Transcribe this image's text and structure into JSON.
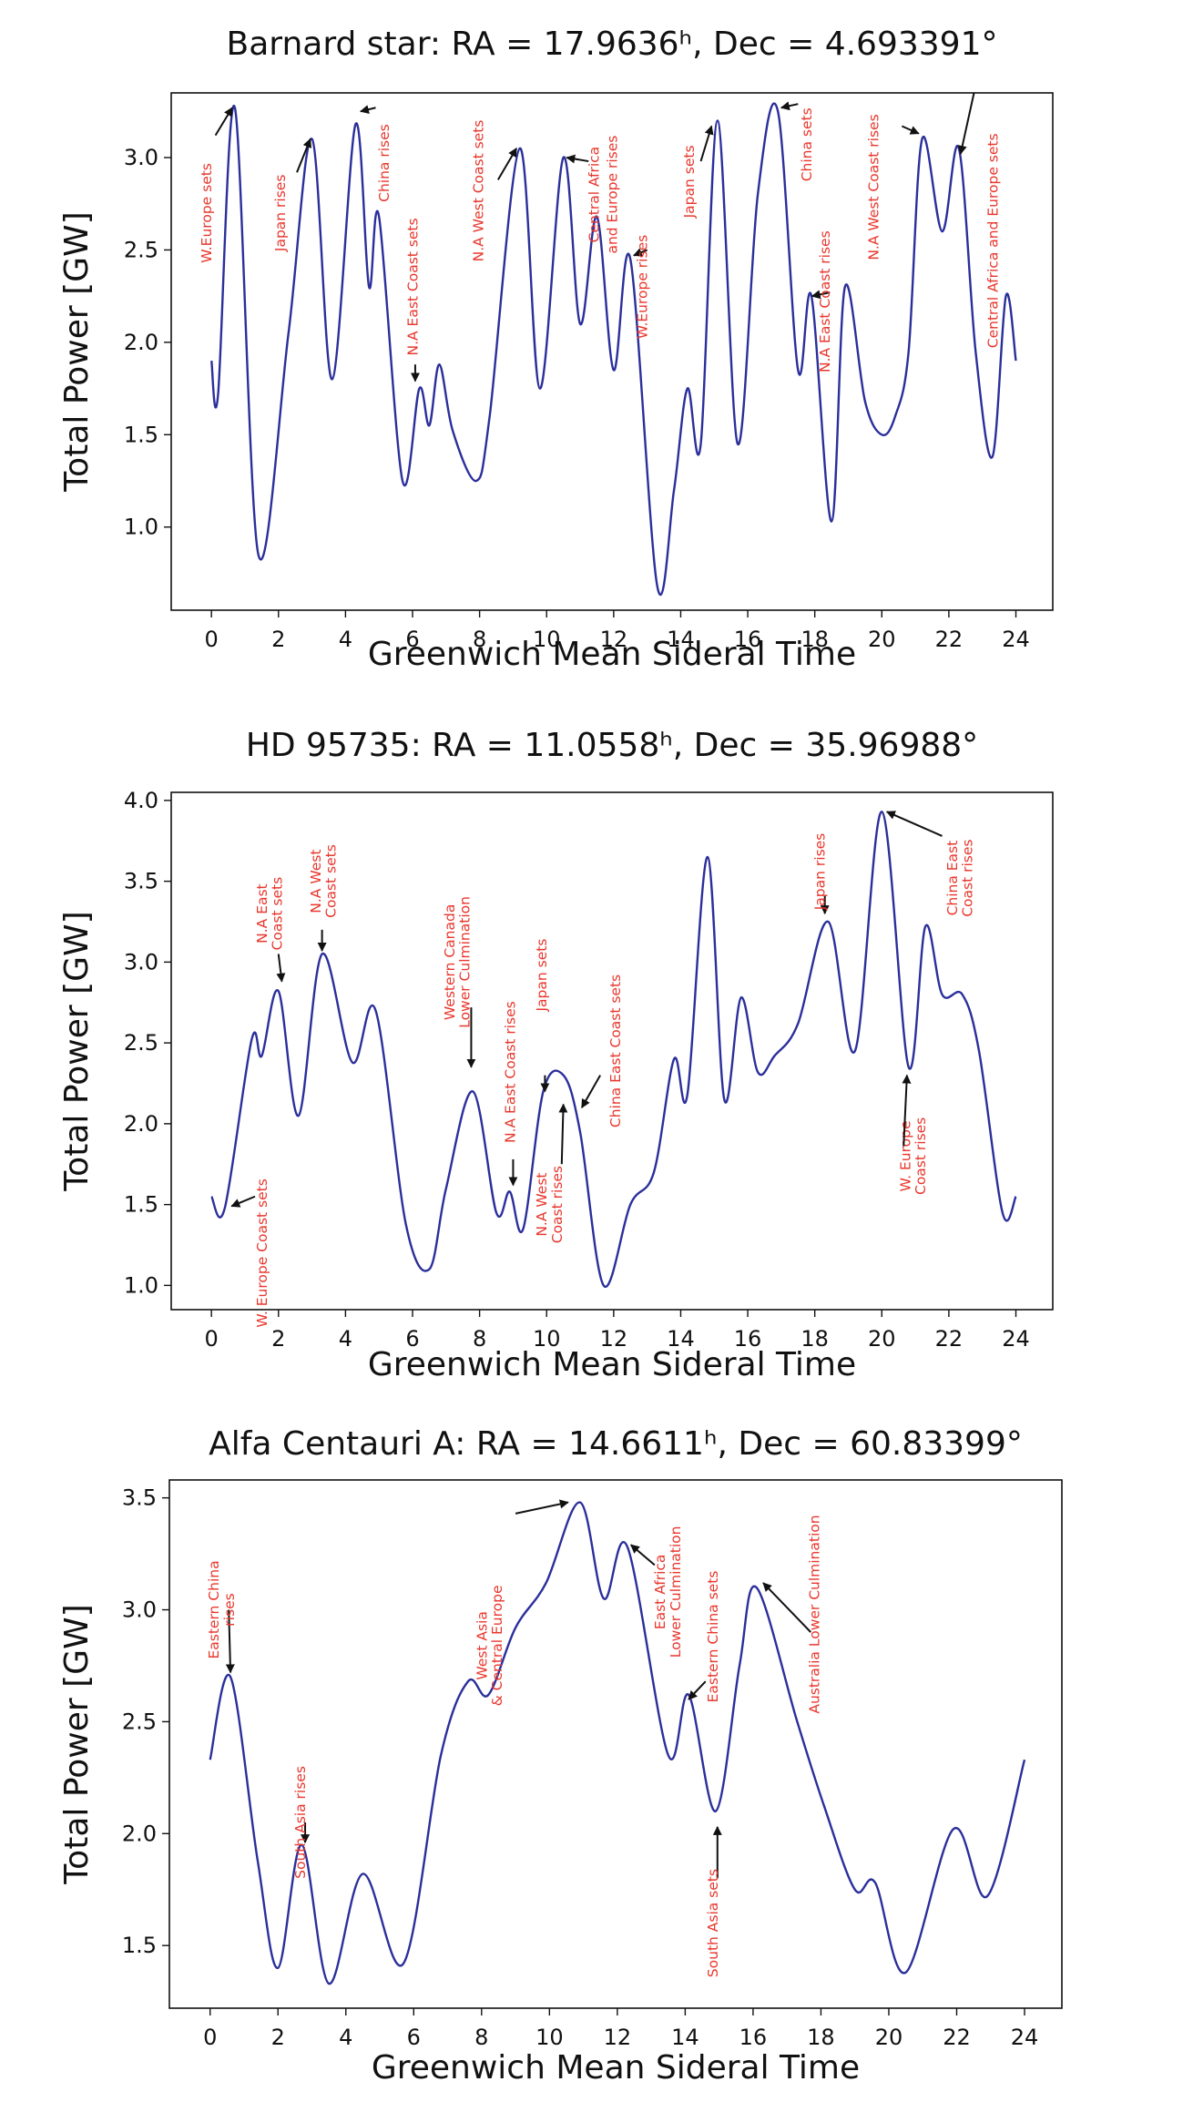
{
  "chart_data": [
    {
      "type": "line",
      "title": "Barnard star: RA = 17.9636ʰ, Dec = 4.693391°",
      "xlabel": "Greenwich Mean Sideral Time",
      "ylabel": "Total Power [GW]",
      "xlim": [
        -1.2,
        25.1
      ],
      "ylim": [
        0.55,
        3.35
      ],
      "xticks": [
        0,
        2,
        4,
        6,
        8,
        10,
        12,
        14,
        16,
        18,
        20,
        22,
        24
      ],
      "yticks": [
        1.0,
        1.5,
        2.0,
        2.5,
        3.0
      ],
      "line_color": "#2b2f9a",
      "annotation_color": "#e8372d",
      "series": [
        {
          "x": [
            0,
            0.2,
            0.7,
            1.4,
            2.3,
            3.0,
            3.6,
            4.3,
            4.7,
            5.0,
            5.7,
            6.2,
            6.5,
            6.8,
            7.2,
            7.9,
            8.3,
            9.2,
            9.8,
            10.5,
            11.0,
            11.5,
            12.0,
            12.5,
            13.3,
            13.8,
            14.2,
            14.6,
            15.1,
            15.7,
            16.3,
            16.9,
            17.5,
            17.9,
            18.5,
            18.9,
            19.5,
            20.0,
            20.4,
            20.8,
            21.2,
            21.8,
            22.3,
            22.8,
            23.3,
            23.7,
            24.0
          ],
          "values": [
            1.9,
            1.72,
            3.27,
            0.85,
            2.05,
            3.1,
            1.8,
            3.18,
            2.3,
            2.68,
            1.25,
            1.75,
            1.55,
            1.88,
            1.52,
            1.25,
            1.6,
            3.05,
            1.75,
            3.0,
            2.1,
            2.68,
            1.85,
            2.45,
            0.68,
            1.2,
            1.75,
            1.45,
            3.2,
            1.45,
            2.8,
            3.25,
            1.85,
            2.25,
            1.03,
            2.3,
            1.68,
            1.5,
            1.6,
            1.95,
            3.1,
            2.6,
            3.05,
            1.95,
            1.38,
            2.25,
            1.9
          ]
        }
      ],
      "annotations": [
        {
          "text": "W.Europe sets",
          "x": 0.0,
          "y": 2.7,
          "ax": 0.12,
          "ay": 3.12,
          "hx": 0.62,
          "hy": 3.27
        },
        {
          "text": "Japan rises",
          "x": 2.2,
          "y": 2.7,
          "ax": 2.55,
          "ay": 2.92,
          "hx": 2.95,
          "hy": 3.1
        },
        {
          "text": "China rises",
          "x": 5.3,
          "y": 2.97,
          "ax": 4.9,
          "ay": 3.27,
          "hx": 4.45,
          "hy": 3.25
        },
        {
          "text": "N.A East Coast sets",
          "x": 6.15,
          "y": 2.3,
          "ax": 6.08,
          "ay": 1.88,
          "hx": 6.08,
          "hy": 1.79
        },
        {
          "text": "N.A West Coast sets",
          "x": 8.1,
          "y": 2.82,
          "ax": 8.55,
          "ay": 2.88,
          "hx": 9.1,
          "hy": 3.05
        },
        {
          "text": "Central Africa",
          "x": 11.55,
          "y": 2.8,
          "ax": 11.25,
          "ay": 2.98,
          "hx": 10.6,
          "hy": 3.0
        },
        {
          "text": "and Europe rises",
          "x": 12.1,
          "y": 2.8
        },
        {
          "text": "W.Europe rises",
          "x": 13.0,
          "y": 2.3,
          "ax": 13.0,
          "ay": 2.5,
          "hx": 12.6,
          "hy": 2.47
        },
        {
          "text": "Japan sets",
          "x": 14.4,
          "y": 2.87,
          "ax": 14.6,
          "ay": 2.98,
          "hx": 14.92,
          "hy": 3.17
        },
        {
          "text": "China sets",
          "x": 17.9,
          "y": 3.07,
          "ax": 17.5,
          "ay": 3.29,
          "hx": 17.0,
          "hy": 3.27
        },
        {
          "text": "N.A East Coast rises",
          "x": 18.45,
          "y": 2.22,
          "ax": 18.45,
          "ay": 2.27,
          "hx": 17.92,
          "hy": 2.25
        },
        {
          "text": "N.A West Coast rises",
          "x": 19.9,
          "y": 2.84,
          "ax": 20.6,
          "ay": 3.17,
          "hx": 21.1,
          "hy": 3.13
        },
        {
          "text": "Central Africa and Europe sets",
          "x": 23.45,
          "y": 2.55,
          "ax": 22.75,
          "ay": 3.35,
          "hx": 22.35,
          "hy": 3.02
        }
      ]
    },
    {
      "type": "line",
      "title": "HD 95735: RA = 11.0558ʰ, Dec = 35.96988°",
      "xlabel": "Greenwich Mean Sideral Time",
      "ylabel": "Total Power [GW]",
      "xlim": [
        -1.2,
        25.1
      ],
      "ylim": [
        0.85,
        4.05
      ],
      "xticks": [
        0,
        2,
        4,
        6,
        8,
        10,
        12,
        14,
        16,
        18,
        20,
        22,
        24
      ],
      "yticks": [
        1.0,
        1.5,
        2.0,
        2.5,
        3.0,
        3.5,
        4.0
      ],
      "line_color": "#2b2f9a",
      "annotation_color": "#e8372d",
      "series": [
        {
          "x": [
            0,
            0.4,
            1.2,
            1.5,
            2.0,
            2.6,
            3.3,
            4.2,
            4.9,
            5.8,
            6.5,
            7.0,
            7.8,
            8.5,
            8.9,
            9.3,
            9.9,
            10.5,
            11.0,
            11.7,
            12.5,
            13.2,
            13.8,
            14.2,
            14.8,
            15.3,
            15.8,
            16.3,
            16.8,
            17.5,
            18.4,
            19.2,
            20.0,
            20.8,
            21.3,
            21.8,
            22.4,
            22.9,
            23.6,
            24.0
          ],
          "values": [
            1.55,
            1.48,
            2.52,
            2.42,
            2.82,
            2.05,
            3.05,
            2.38,
            2.7,
            1.38,
            1.1,
            1.6,
            2.2,
            1.45,
            1.58,
            1.35,
            2.2,
            2.3,
            1.95,
            1.0,
            1.5,
            1.7,
            2.4,
            2.18,
            3.65,
            2.15,
            2.78,
            2.32,
            2.42,
            2.62,
            3.25,
            2.45,
            3.93,
            2.35,
            3.22,
            2.8,
            2.8,
            2.45,
            1.45,
            1.55
          ]
        }
      ],
      "annotations": [
        {
          "text": "W. Europe Coast sets",
          "x": 1.65,
          "y": 1.2,
          "ax": 1.3,
          "ay": 1.55,
          "hx": 0.6,
          "hy": 1.49
        },
        {
          "text": "N.A East",
          "x": 1.65,
          "y": 3.3
        },
        {
          "text": "Coast sets",
          "x": 2.1,
          "y": 3.3,
          "ax": 2.0,
          "ay": 3.05,
          "hx": 2.1,
          "hy": 2.88
        },
        {
          "text": "N.A West",
          "x": 3.25,
          "y": 3.5
        },
        {
          "text": "Coast sets",
          "x": 3.7,
          "y": 3.5,
          "ax": 3.3,
          "ay": 3.2,
          "hx": 3.3,
          "hy": 3.07
        },
        {
          "text": "Western Canada",
          "x": 7.25,
          "y": 3.0
        },
        {
          "text": "Lower Culmination",
          "x": 7.7,
          "y": 3.0,
          "ax": 7.75,
          "ay": 2.72,
          "hx": 7.75,
          "hy": 2.35
        },
        {
          "text": "N.A East Coast rises",
          "x": 9.05,
          "y": 2.32,
          "ax": 9.0,
          "ay": 1.78,
          "hx": 9.0,
          "hy": 1.62
        },
        {
          "text": "Japan sets",
          "x": 10.0,
          "y": 2.92,
          "ax": 9.95,
          "ay": 2.3,
          "hx": 9.95,
          "hy": 2.2
        },
        {
          "text": "N.A West",
          "x": 10.0,
          "y": 1.5
        },
        {
          "text": "Coast rises",
          "x": 10.45,
          "y": 1.5,
          "ax": 10.45,
          "ay": 1.75,
          "hx": 10.5,
          "hy": 2.12
        },
        {
          "text": "China East Coast sets",
          "x": 12.2,
          "y": 2.45,
          "ax": 11.6,
          "ay": 2.3,
          "hx": 11.05,
          "hy": 2.1
        },
        {
          "text": "Japan rises",
          "x": 18.3,
          "y": 3.56,
          "ax": 18.3,
          "ay": 3.41,
          "hx": 18.3,
          "hy": 3.3
        },
        {
          "text": "China East",
          "x": 22.25,
          "y": 3.52
        },
        {
          "text": "Coast rises",
          "x": 22.7,
          "y": 3.52,
          "ax": 21.8,
          "ay": 3.78,
          "hx": 20.15,
          "hy": 3.93
        },
        {
          "text": "W. Europe",
          "x": 20.85,
          "y": 1.8
        },
        {
          "text": "Coast rises",
          "x": 21.3,
          "y": 1.8,
          "ax": 20.65,
          "ay": 1.86,
          "hx": 20.75,
          "hy": 2.3
        }
      ]
    },
    {
      "type": "line",
      "title": "Alfa Centauri A: RA = 14.6611ʰ, Dec = 60.83399°",
      "xlabel": "Greenwich Mean Sideral Time",
      "ylabel": "Total Power [GW]",
      "xlim": [
        -1.2,
        25.1
      ],
      "ylim": [
        1.22,
        3.58
      ],
      "xticks": [
        0,
        2,
        4,
        6,
        8,
        10,
        12,
        14,
        16,
        18,
        20,
        22,
        24
      ],
      "yticks": [
        1.5,
        2.0,
        2.5,
        3.0,
        3.5
      ],
      "line_color": "#2b2f9a",
      "annotation_color": "#e8372d",
      "series": [
        {
          "x": [
            0,
            0.6,
            1.4,
            2.0,
            2.7,
            3.5,
            4.5,
            5.7,
            6.8,
            7.6,
            8.2,
            9.0,
            9.9,
            10.9,
            11.6,
            12.3,
            13.5,
            14.1,
            14.9,
            15.6,
            16.1,
            17.3,
            18.1,
            19.0,
            19.6,
            20.5,
            21.9,
            22.9,
            24.0
          ],
          "values": [
            2.33,
            2.7,
            1.88,
            1.4,
            1.95,
            1.33,
            1.82,
            1.42,
            2.35,
            2.68,
            2.62,
            2.92,
            3.12,
            3.48,
            3.05,
            3.28,
            2.35,
            2.62,
            2.1,
            2.75,
            3.1,
            2.5,
            2.12,
            1.75,
            1.78,
            1.38,
            2.02,
            1.72,
            2.33
          ]
        }
      ],
      "annotations": [
        {
          "text": "Eastern China",
          "x": 0.25,
          "y": 3.0
        },
        {
          "text": "rises",
          "x": 0.7,
          "y": 3.0,
          "ax": 0.55,
          "ay": 3.0,
          "hx": 0.6,
          "hy": 2.72
        },
        {
          "text": "South Asia rises",
          "x": 2.8,
          "y": 2.05,
          "ax": 2.8,
          "ay": 2.05,
          "hx": 2.8,
          "hy": 1.96
        },
        {
          "text": "West Asia",
          "x": 8.15,
          "y": 2.84
        },
        {
          "text": "& Central Europe",
          "x": 8.6,
          "y": 2.84,
          "ax": 9.0,
          "ay": 3.43,
          "hx": 10.55,
          "hy": 3.48
        },
        {
          "text": "East Africa",
          "x": 13.4,
          "y": 3.08
        },
        {
          "text": "Lower Culmination",
          "x": 13.85,
          "y": 3.08,
          "ax": 13.1,
          "ay": 3.2,
          "hx": 12.4,
          "hy": 3.29
        },
        {
          "text": "Eastern China sets",
          "x": 14.95,
          "y": 2.88,
          "ax": 14.6,
          "ay": 2.68,
          "hx": 14.1,
          "hy": 2.6
        },
        {
          "text": "South Asia sets",
          "x": 14.95,
          "y": 1.6,
          "ax": 14.95,
          "ay": 1.8,
          "hx": 14.95,
          "hy": 2.03
        },
        {
          "text": "Australia Lower Culmination",
          "x": 17.95,
          "y": 2.98,
          "ax": 17.7,
          "ay": 2.9,
          "hx": 16.3,
          "hy": 3.12
        }
      ]
    }
  ]
}
